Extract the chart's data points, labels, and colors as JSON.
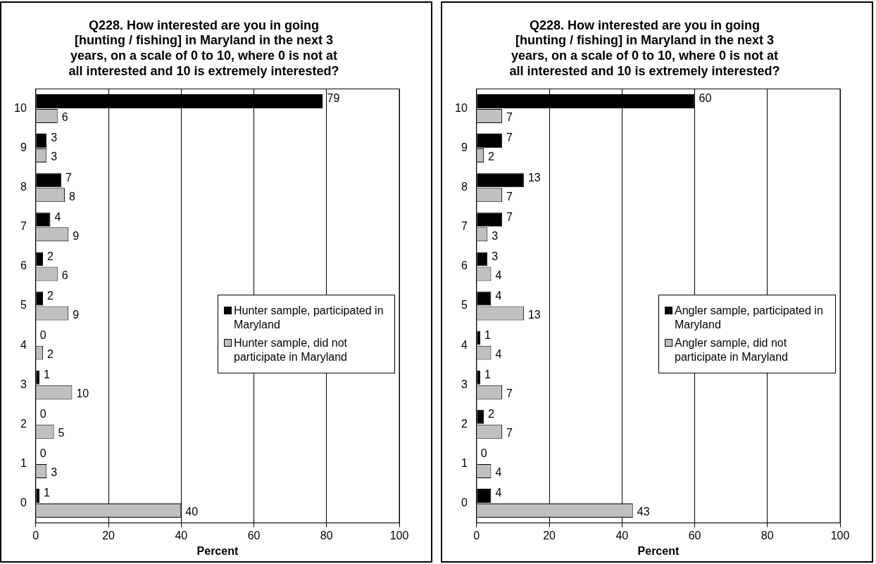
{
  "chart_data": [
    {
      "type": "bar",
      "orientation": "horizontal",
      "title": "Q228. How interested are you in going [hunting / fishing] in Maryland in the next 3 years, on a scale of 0 to 10, where 0 is not at all interested and 10 is extremely interested?",
      "xlabel": "Percent",
      "categories": [
        "10",
        "9",
        "8",
        "7",
        "6",
        "5",
        "4",
        "3",
        "2",
        "1",
        "0"
      ],
      "series": [
        {
          "name": "Hunter sample, participated in Maryland",
          "color": "#000000",
          "values": [
            79,
            3,
            7,
            4,
            2,
            2,
            0,
            1,
            0,
            0,
            1
          ]
        },
        {
          "name": "Hunter sample, did not participate in Maryland",
          "color": "#c0c0c0",
          "values": [
            6,
            3,
            8,
            9,
            6,
            9,
            2,
            10,
            5,
            3,
            40
          ]
        }
      ],
      "xlim": [
        0,
        100
      ],
      "xticks": [
        0,
        20,
        40,
        60,
        80,
        100
      ],
      "grid": "x",
      "legend": "right",
      "data_labels": true
    },
    {
      "type": "bar",
      "orientation": "horizontal",
      "title": "Q228. How interested are you in going [hunting / fishing] in Maryland in the next 3 years, on a scale of 0 to 10, where 0 is not at all interested and 10 is extremely interested?",
      "xlabel": "Percent",
      "categories": [
        "10",
        "9",
        "8",
        "7",
        "6",
        "5",
        "4",
        "3",
        "2",
        "1",
        "0"
      ],
      "series": [
        {
          "name": "Angler sample, participated in Maryland",
          "color": "#000000",
          "values": [
            60,
            7,
            13,
            7,
            3,
            4,
            1,
            1,
            2,
            0,
            4
          ]
        },
        {
          "name": "Angler sample, did not participate in Maryland",
          "color": "#c0c0c0",
          "values": [
            7,
            2,
            7,
            3,
            4,
            13,
            4,
            7,
            7,
            4,
            43
          ]
        }
      ],
      "xlim": [
        0,
        100
      ],
      "xticks": [
        0,
        20,
        40,
        60,
        80,
        100
      ],
      "grid": "x",
      "legend": "right",
      "data_labels": true
    }
  ]
}
